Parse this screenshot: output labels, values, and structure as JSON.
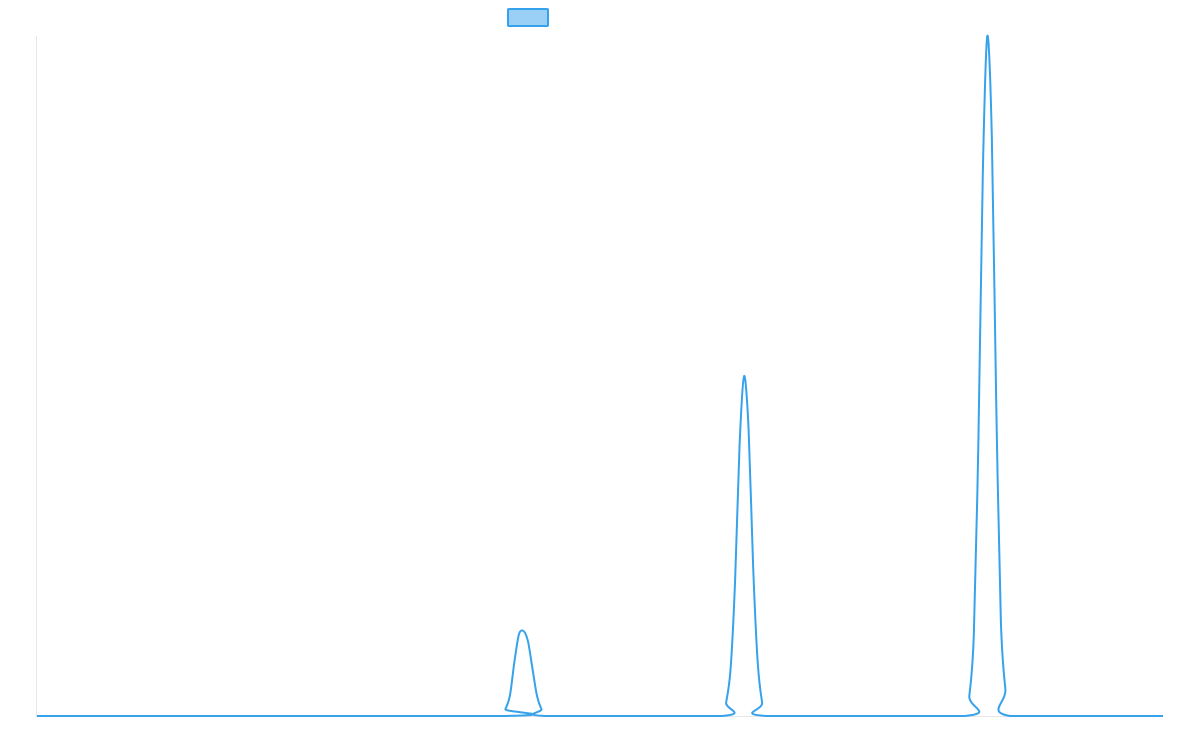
{
  "colors": {
    "series": "#36a2eb",
    "series_fill": "#9ad0f5",
    "axis": "#e6e6e6",
    "background": "#ffffff"
  },
  "chart_data": {
    "type": "line",
    "title": "",
    "xlabel": "",
    "ylabel": "",
    "grid": false,
    "legend": "top-center",
    "xlim": [
      0,
      1000
    ],
    "ylim": [
      0,
      1
    ],
    "series": [
      {
        "name": "",
        "x": [
          0,
          412,
          416,
          420,
          424,
          428,
          432,
          436,
          440,
          444,
          448,
          452,
          608,
          612,
          616,
          620,
          624,
          628,
          632,
          636,
          640,
          644,
          648,
          824,
          828,
          832,
          836,
          840,
          844,
          848,
          852,
          856,
          860,
          864,
          1000
        ],
        "y": [
          0,
          0,
          0.01,
          0.03,
          0.08,
          0.12,
          0.125,
          0.11,
          0.07,
          0.03,
          0.01,
          0,
          0,
          0.02,
          0.07,
          0.2,
          0.4,
          0.5,
          0.42,
          0.22,
          0.08,
          0.02,
          0,
          0,
          0.03,
          0.12,
          0.4,
          0.8,
          1.0,
          0.85,
          0.45,
          0.14,
          0.04,
          0,
          0
        ]
      }
    ]
  }
}
